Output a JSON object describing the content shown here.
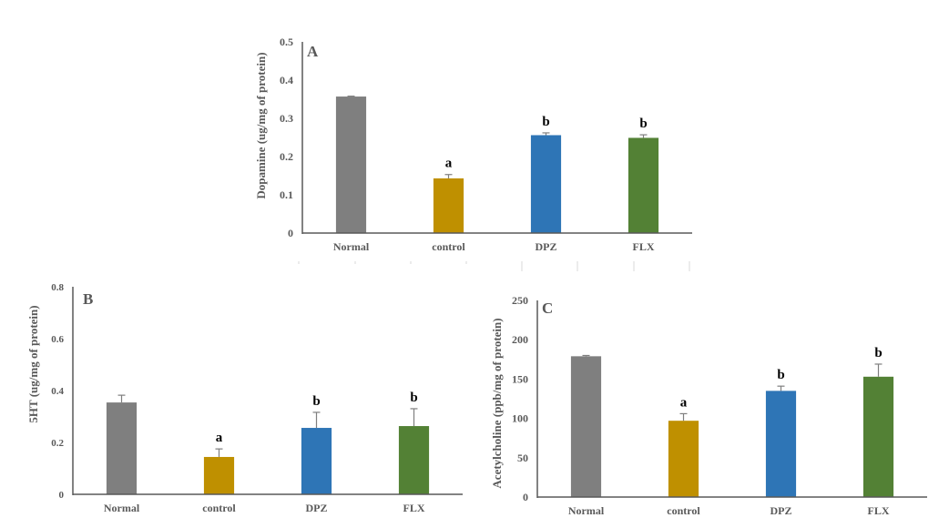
{
  "chart_data": [
    {
      "type": "bar",
      "panel_label": "A",
      "title": "",
      "xlabel": "",
      "ylabel": "Dopamine (ug/mg of protein)",
      "ylim": [
        0,
        0.5
      ],
      "yticks": [
        "0",
        "0.1",
        "0.2",
        "0.3",
        "0.4",
        "0.5"
      ],
      "ytick_values": [
        0,
        0.1,
        0.2,
        0.3,
        0.4,
        0.5
      ],
      "categories": [
        "Normal",
        "control",
        "DPZ",
        "FLX"
      ],
      "values": [
        0.357,
        0.143,
        0.256,
        0.249
      ],
      "errors": [
        0.001,
        0.01,
        0.006,
        0.008
      ],
      "significance": [
        "",
        "a",
        "b",
        "b"
      ],
      "colors": [
        "#7f7f7f",
        "#bf9000",
        "#2e75b6",
        "#538135"
      ],
      "grid": false
    },
    {
      "type": "bar",
      "panel_label": "B",
      "title": "",
      "xlabel": "",
      "ylabel": "5HT (ug/mg of protein)",
      "ylim": [
        0,
        0.8
      ],
      "yticks": [
        "0",
        "0.2",
        "0.4",
        "0.6",
        "0.8"
      ],
      "ytick_values": [
        0,
        0.2,
        0.4,
        0.6,
        0.8
      ],
      "categories": [
        "Normal",
        "control",
        "DPZ",
        "FLX"
      ],
      "values": [
        0.354,
        0.144,
        0.256,
        0.263
      ],
      "errors": [
        0.028,
        0.031,
        0.06,
        0.067
      ],
      "significance": [
        "",
        "a",
        "b",
        "b"
      ],
      "colors": [
        "#7f7f7f",
        "#bf9000",
        "#2e75b6",
        "#538135"
      ],
      "grid": false
    },
    {
      "type": "bar",
      "panel_label": "C",
      "title": "",
      "xlabel": "",
      "ylabel": "Acetylcholine (ppb/mg of protein)",
      "ylim": [
        0,
        250
      ],
      "yticks": [
        "0",
        "50",
        "100",
        "150",
        "200",
        "250"
      ],
      "ytick_values": [
        0,
        50,
        100,
        150,
        200,
        250
      ],
      "categories": [
        "Normal",
        "control",
        "DPZ",
        "FLX"
      ],
      "values": [
        179,
        97,
        135,
        153
      ],
      "errors": [
        1,
        9,
        6,
        16
      ],
      "significance": [
        "",
        "a",
        "b",
        "b"
      ],
      "colors": [
        "#7f7f7f",
        "#bf9000",
        "#2e75b6",
        "#538135"
      ],
      "grid": false
    }
  ]
}
